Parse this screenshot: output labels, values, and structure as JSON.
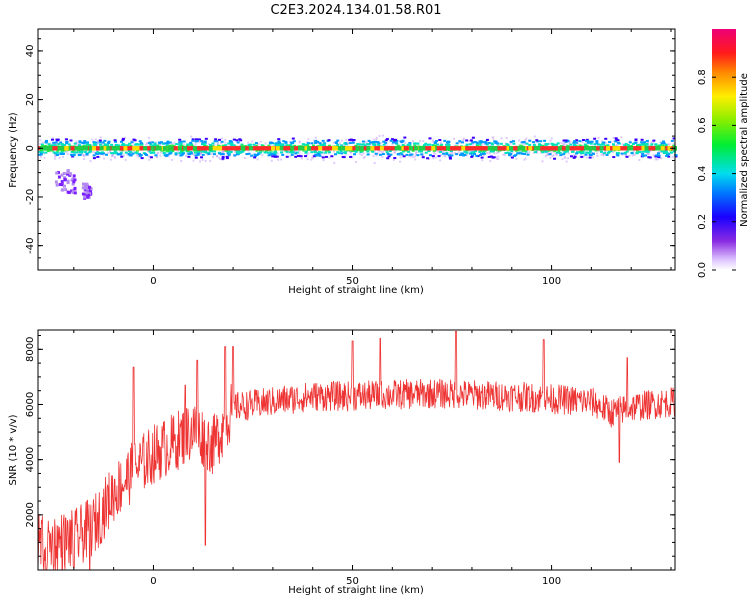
{
  "title": "C2E3.2024.134.01.58.R01",
  "chart_data": [
    {
      "type": "heatmap",
      "xlabel": "Height of straight line (km)",
      "ylabel": "Frequency (Hz)",
      "xlim": [
        -29,
        131
      ],
      "ylim": [
        -50,
        49
      ],
      "xticks": [
        0,
        50,
        100
      ],
      "xtick_labels": [
        "0",
        "50",
        "100"
      ],
      "yticks": [
        -40,
        -20,
        0,
        20,
        40
      ],
      "ytick_labels": [
        "-40",
        "-20",
        "0",
        "20",
        "40"
      ],
      "colorbar": {
        "label": "Normalized spectral amplitude",
        "range": [
          0,
          1
        ],
        "ticks": [
          0,
          0.2,
          0.4,
          0.6,
          0.8
        ],
        "tick_labels": [
          "0.0",
          "0.2",
          "0.4",
          "0.6",
          "0.8"
        ]
      },
      "band": {
        "center_hz": 0,
        "core_halfwidth_hz": 1,
        "spread_halfwidth_hz": 5
      },
      "scatter_clusters": [
        {
          "x": [
            -25,
            -20
          ],
          "y": [
            -18,
            -8
          ]
        },
        {
          "x": [
            -18,
            -16
          ],
          "y": [
            -20,
            -14
          ]
        }
      ]
    },
    {
      "type": "line",
      "xlabel": "Height of straight line (km)",
      "ylabel": "SNR (10 * v/v)",
      "xlim": [
        -29,
        131
      ],
      "ylim": [
        0,
        8700
      ],
      "xticks": [
        0,
        50,
        100
      ],
      "xtick_labels": [
        "0",
        "50",
        "100"
      ],
      "yticks": [
        2000,
        4000,
        6000,
        8000
      ],
      "ytick_labels": [
        "2000",
        "4000",
        "6000",
        "8000"
      ],
      "color": "#ee3333",
      "trend": {
        "x": [
          -29,
          -20,
          -15,
          -10,
          -5,
          0,
          5,
          10,
          15,
          20,
          25,
          30,
          40,
          50,
          60,
          70,
          80,
          90,
          100,
          110,
          115,
          120,
          125,
          131
        ],
        "y": [
          900,
          1100,
          1600,
          2800,
          3600,
          4200,
          4600,
          5100,
          4500,
          5900,
          6000,
          6100,
          6300,
          6300,
          6350,
          6400,
          6350,
          6300,
          6200,
          6100,
          5700,
          5900,
          6000,
          6100
        ]
      },
      "peaks": [
        {
          "x": -5,
          "y": 7350
        },
        {
          "x": 8,
          "y": 6700
        },
        {
          "x": 11,
          "y": 7600
        },
        {
          "x": 18,
          "y": 8100
        },
        {
          "x": 20,
          "y": 8100
        },
        {
          "x": 50,
          "y": 8300
        },
        {
          "x": 57,
          "y": 8400
        },
        {
          "x": 76,
          "y": 8650
        },
        {
          "x": 98,
          "y": 8350
        },
        {
          "x": 119,
          "y": 7700
        }
      ],
      "troughs": [
        {
          "x": -27,
          "y": 0
        },
        {
          "x": -20,
          "y": 100
        },
        {
          "x": -16,
          "y": 0
        },
        {
          "x": 13,
          "y": 900
        },
        {
          "x": 117,
          "y": 3900
        }
      ]
    }
  ]
}
